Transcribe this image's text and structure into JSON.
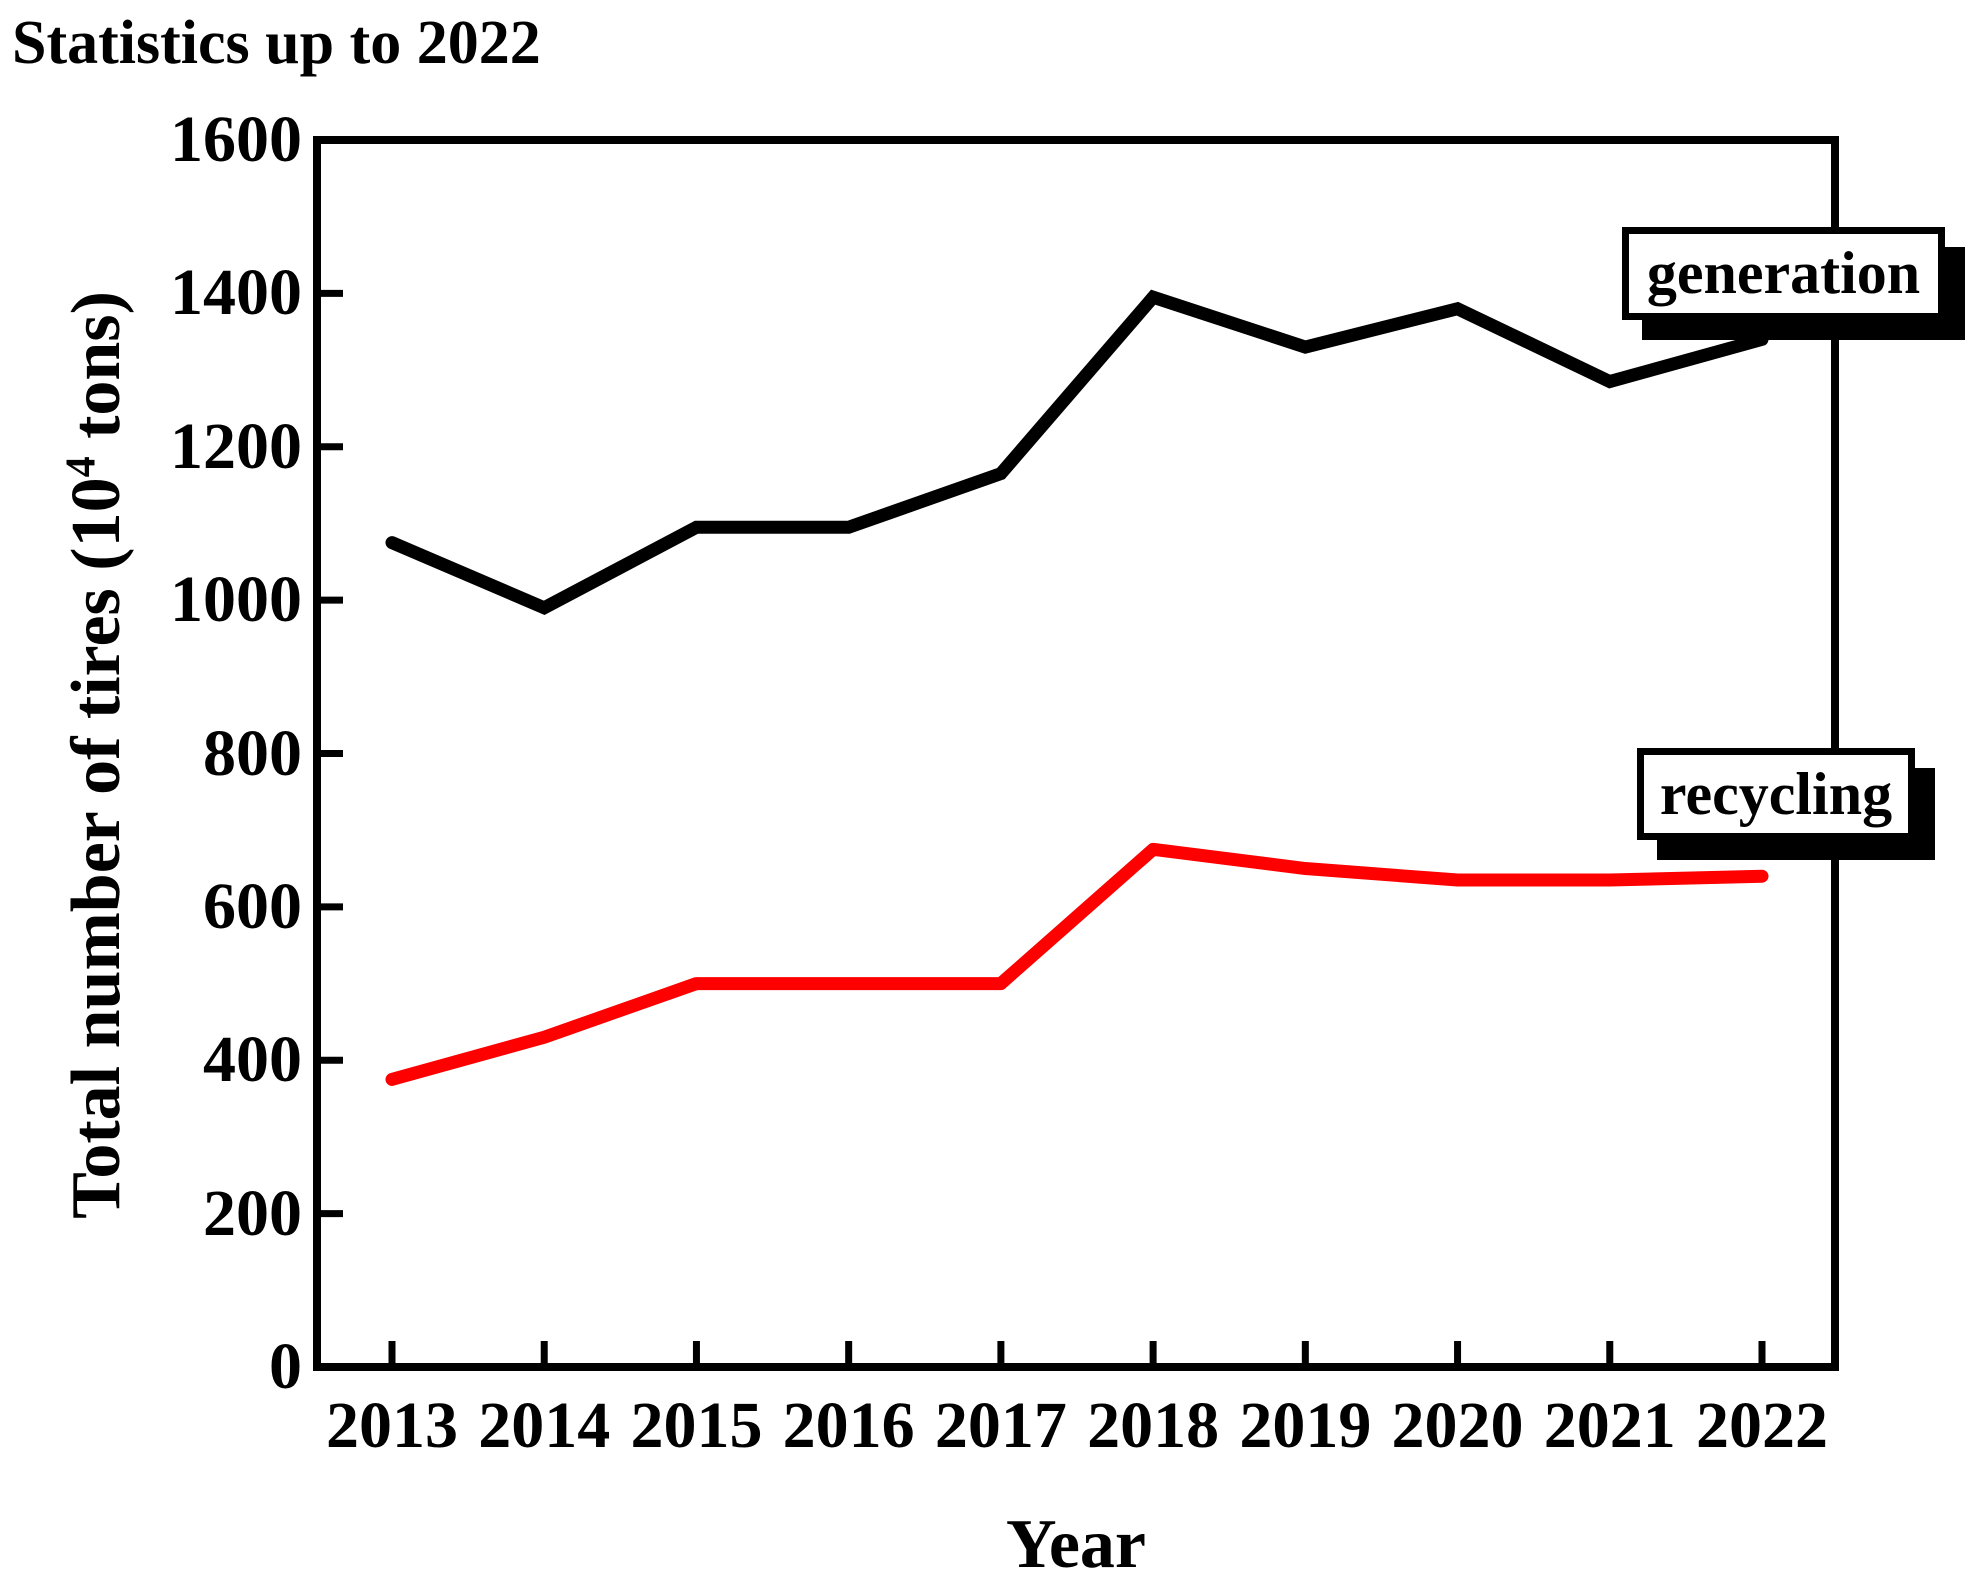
{
  "title": "Statistics up to 2022",
  "chart_data": {
    "type": "line",
    "x": [
      2013,
      2014,
      2015,
      2016,
      2017,
      2018,
      2019,
      2020,
      2021,
      2022
    ],
    "series": [
      {
        "name": "generation",
        "color": "#000000",
        "values": [
          1075,
          990,
          1095,
          1095,
          1165,
          1395,
          1330,
          1380,
          1285,
          1340
        ]
      },
      {
        "name": "recycling",
        "color": "#ff0000",
        "values": [
          375,
          430,
          500,
          500,
          500,
          675,
          650,
          635,
          635,
          640
        ]
      }
    ],
    "xlabel": "Year",
    "ylabel_prefix": "Total number of tires (10",
    "ylabel_sup": "4",
    "ylabel_suffix": " tons)",
    "ylim": [
      0,
      1600
    ],
    "ytick_step": 200,
    "grid": "off",
    "legend_position": "boxed labels at right, inside plot"
  }
}
